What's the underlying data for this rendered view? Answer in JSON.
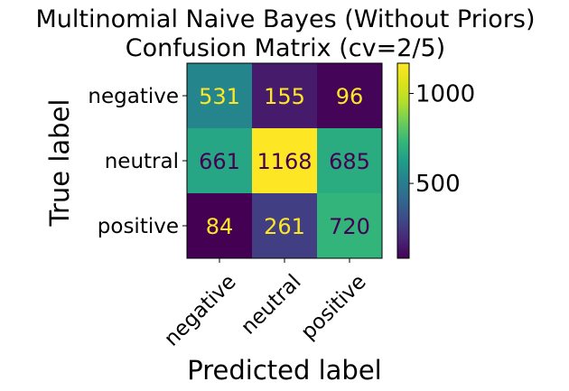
{
  "chart_data": {
    "type": "heatmap",
    "title_lines": [
      "Multinomial Naive Bayes (Without Priors)",
      "Confusion Matrix (cv=2/5)"
    ],
    "xlabel": "Predicted label",
    "ylabel": "True label",
    "x_categories": [
      "negative",
      "neutral",
      "positive"
    ],
    "y_categories": [
      "negative",
      "neutral",
      "positive"
    ],
    "values": [
      [
        531,
        155,
        96
      ],
      [
        661,
        1168,
        685
      ],
      [
        84,
        261,
        720
      ]
    ],
    "colormap": "viridis",
    "colorbar": {
      "range": [
        84,
        1168
      ],
      "ticks": [
        500,
        1000
      ]
    },
    "text_colors": {
      "light": "#fde725",
      "dark": "#440154"
    }
  }
}
